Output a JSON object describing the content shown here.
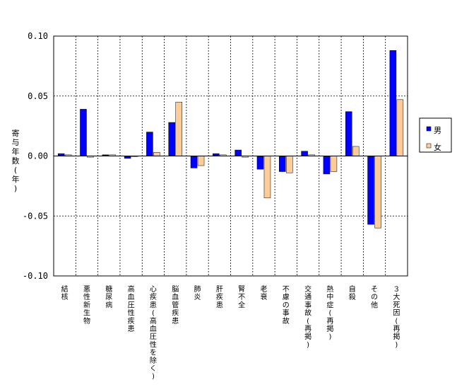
{
  "chart_data": {
    "type": "bar",
    "ylabel": "寄与年数(年)",
    "ylim": [
      -0.1,
      0.1
    ],
    "yticks": [
      "0.10",
      "0.05",
      "0.00",
      "-0.05",
      "-0.10"
    ],
    "grid": true,
    "legend_position": "right",
    "categories": [
      "結核",
      "悪性新生物",
      "糖尿病",
      "高血圧性疾患",
      "心疾患(高血圧性を除く)",
      "脳血管疾患",
      "肺炎",
      "肝疾患",
      "腎不全",
      "老衰",
      "不慮の事故",
      "交通事故(再掲)",
      "熱中症(再掲)",
      "自殺",
      "その他",
      "３大死因(再掲)"
    ],
    "series": [
      {
        "name": "男",
        "color": "#0000ff",
        "values": [
          0.002,
          0.039,
          0.001,
          -0.002,
          0.02,
          0.028,
          -0.01,
          0.002,
          0.005,
          -0.011,
          -0.013,
          0.004,
          -0.015,
          0.037,
          -0.057,
          0.088
        ]
      },
      {
        "name": "女",
        "color": "#ffcc99",
        "values": [
          0.001,
          -0.001,
          0.001,
          0.0,
          0.003,
          0.045,
          -0.008,
          0.001,
          -0.001,
          -0.035,
          -0.014,
          0.001,
          -0.013,
          0.008,
          -0.06,
          0.047
        ]
      }
    ]
  }
}
